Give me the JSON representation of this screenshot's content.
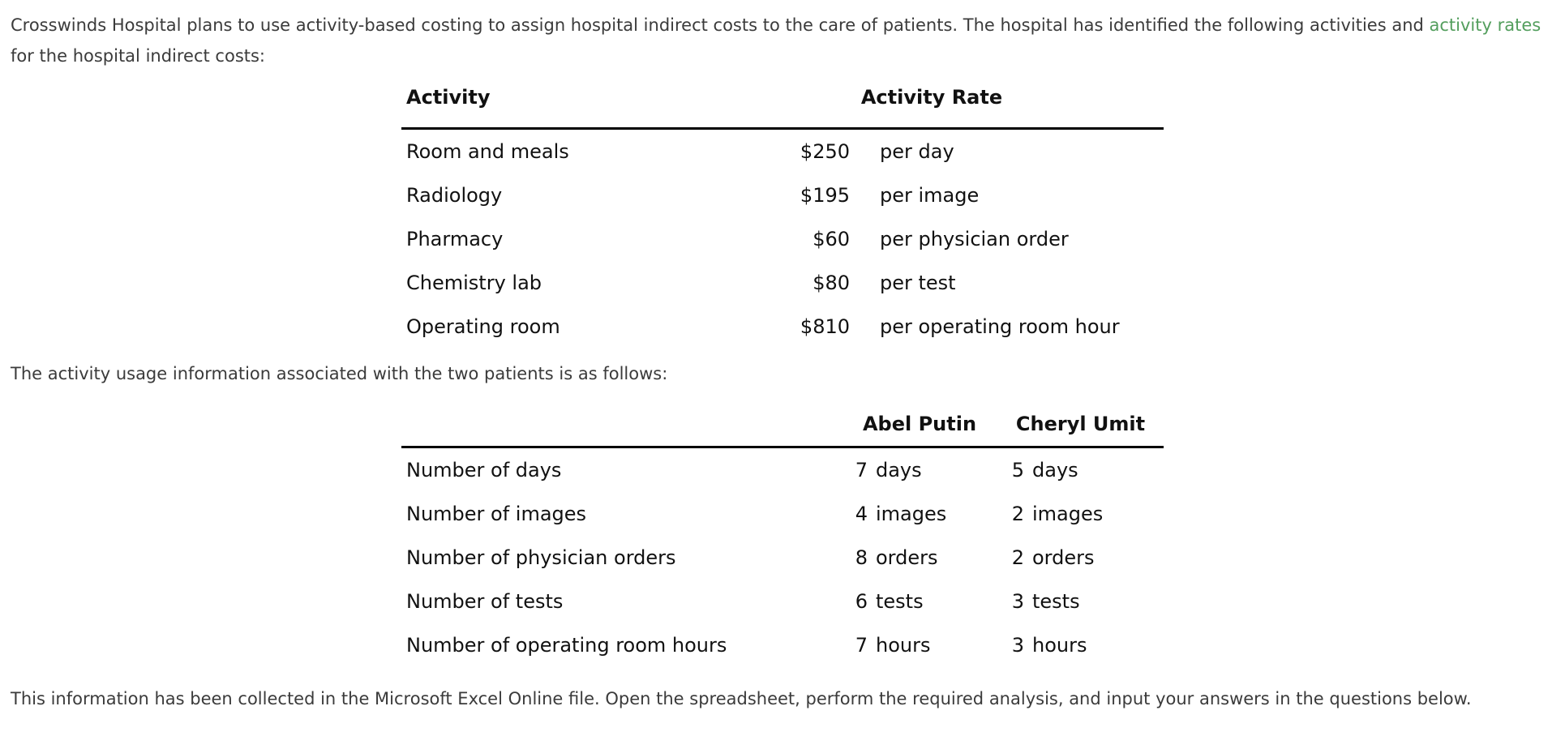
{
  "colors": {
    "link_green": "#539e5d",
    "paragraph_text": "#3b3b3b",
    "table_text": "#111111",
    "rule_black": "#000000",
    "background": "#ffffff"
  },
  "intro": {
    "text_before_link": "Crosswinds Hospital plans to use activity-based costing to assign hospital indirect costs to the care of patients. The hospital has identified the following activities and ",
    "link_text": "activity rates",
    "text_after_link": " for the hospital indirect costs:"
  },
  "rate_table": {
    "col_activity": "Activity",
    "col_rate": "Activity Rate",
    "rows": [
      {
        "activity": "Room and meals",
        "rate": "$250",
        "unit": "per day"
      },
      {
        "activity": "Radiology",
        "rate": "$195",
        "unit": "per image"
      },
      {
        "activity": "Pharmacy",
        "rate": "$60",
        "unit": "per physician order"
      },
      {
        "activity": "Chemistry lab",
        "rate": "$80",
        "unit": "per test"
      },
      {
        "activity": "Operating room",
        "rate": "$810",
        "unit": "per operating room hour"
      }
    ]
  },
  "usage_intro": "The activity usage information associated with the two patients is as follows:",
  "usage_table": {
    "col_patient1": "Abel Putin",
    "col_patient2": "Cheryl Umit",
    "rows": [
      {
        "label": "Number of days",
        "p1_value": "7",
        "p1_unit": "days",
        "p2_value": "5",
        "p2_unit": "days"
      },
      {
        "label": "Number of images",
        "p1_value": "4",
        "p1_unit": "images",
        "p2_value": "2",
        "p2_unit": "images"
      },
      {
        "label": "Number of physician orders",
        "p1_value": "8",
        "p1_unit": "orders",
        "p2_value": "2",
        "p2_unit": "orders"
      },
      {
        "label": "Number of tests",
        "p1_value": "6",
        "p1_unit": "tests",
        "p2_value": "3",
        "p2_unit": "tests"
      },
      {
        "label": "Number of operating room hours",
        "p1_value": "7",
        "p1_unit": "hours",
        "p2_value": "3",
        "p2_unit": "hours"
      }
    ]
  },
  "closing": "This information has been collected in the Microsoft Excel Online file. Open the spreadsheet, perform the required analysis, and input your answers in the questions below."
}
